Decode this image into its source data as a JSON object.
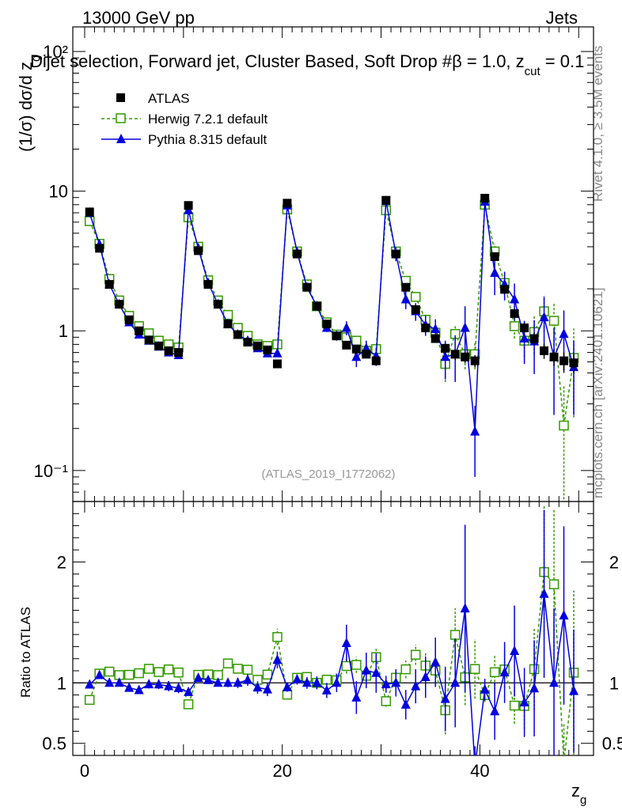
{
  "header": {
    "energy_label": "13000 GeV pp",
    "process_label": "Jets",
    "subtitle": "Dijet selection, Forward jet, Cluster Based, Soft Drop #β = 1.0, z",
    "subtitle_sub": "cut",
    "subtitle_tail": " = 0.1"
  },
  "side": {
    "rivet": "Rivet 4.1.0, ≥ 3.5M events",
    "mcplots": "mcplots.cern.ch [arXiv:2401.10621]"
  },
  "watermark": "(ATLAS_2019_I1772062)",
  "axes": {
    "main_ylabel": "(1/σ) dσ/d z",
    "main_ylabel_sub": "g",
    "ratio_ylabel": "Ratio to ATLAS",
    "xlabel": "z",
    "xlabel_sub": "g"
  },
  "legend": {
    "atlas": "ATLAS",
    "herwig": "Herwig 7.2.1 default",
    "pythia": "Pythia 8.315 default"
  },
  "tick_labels": {
    "main": [
      "10⁻¹",
      "1",
      "10",
      "10²"
    ],
    "ratio": [
      "0.5",
      "1",
      "2"
    ],
    "x": [
      "0",
      "20",
      "40"
    ]
  },
  "colors": {
    "atlas": "#000000",
    "herwig": "#339900",
    "pythia": "#0000dd"
  },
  "chart_data": {
    "type": "scatter",
    "title": "Dijet selection, Forward jet, Cluster Based, Soft Drop β = 1.0, z_cut = 0.1",
    "xlabel": "z_g",
    "ylabel": "(1/σ) dσ/d z_g",
    "yscale": "log",
    "xlim": [
      -1.2,
      51.5
    ],
    "ylim": [
      0.06,
      150
    ],
    "ratio_ylim": [
      0.4,
      2.5
    ],
    "ratio_ylabel": "Ratio to ATLAS",
    "x": [
      0.5,
      1.5,
      2.5,
      3.5,
      4.5,
      5.5,
      6.5,
      7.5,
      8.5,
      9.5,
      10.5,
      11.5,
      12.5,
      13.5,
      14.5,
      15.5,
      16.5,
      17.5,
      18.5,
      19.5,
      20.5,
      21.5,
      22.5,
      23.5,
      24.5,
      25.5,
      26.5,
      27.5,
      28.5,
      29.5,
      30.5,
      31.5,
      32.5,
      33.5,
      34.5,
      35.5,
      36.5,
      37.5,
      38.5,
      39.5,
      40.5,
      41.5,
      42.5,
      43.5,
      44.5,
      45.5,
      46.5,
      47.5,
      48.5,
      49.5
    ],
    "series": [
      {
        "name": "ATLAS",
        "values": [
          7.1,
          3.9,
          2.15,
          1.55,
          1.2,
          1.0,
          0.86,
          0.78,
          0.72,
          0.7,
          7.9,
          3.75,
          2.15,
          1.55,
          1.12,
          0.94,
          0.83,
          0.78,
          0.73,
          0.58,
          8.2,
          3.55,
          2.05,
          1.5,
          1.12,
          0.92,
          0.79,
          0.74,
          0.68,
          0.61,
          8.6,
          3.55,
          2.05,
          1.42,
          1.05,
          0.88,
          0.75,
          0.68,
          0.65,
          0.61,
          8.9,
          3.4,
          1.98,
          1.33,
          1.05,
          0.88,
          0.72,
          0.65,
          0.61,
          0.59
        ],
        "errors": [
          0.2,
          0.1,
          0.05,
          0.04,
          0.03,
          0.03,
          0.03,
          0.03,
          0.03,
          0.03,
          0.25,
          0.1,
          0.05,
          0.04,
          0.03,
          0.03,
          0.03,
          0.03,
          0.03,
          0.03,
          0.25,
          0.1,
          0.06,
          0.05,
          0.04,
          0.04,
          0.04,
          0.04,
          0.04,
          0.04,
          0.3,
          0.12,
          0.08,
          0.07,
          0.06,
          0.06,
          0.06,
          0.06,
          0.06,
          0.06,
          0.3,
          0.15,
          0.1,
          0.1,
          0.09,
          0.09,
          0.09,
          0.09,
          0.09,
          0.09
        ]
      },
      {
        "name": "Herwig 7.2.1 default",
        "values": [
          6.1,
          4.2,
          2.35,
          1.65,
          1.28,
          1.08,
          0.96,
          0.85,
          0.8,
          0.76,
          6.5,
          4.0,
          2.3,
          1.65,
          1.3,
          1.05,
          0.92,
          0.8,
          0.78,
          0.8,
          7.4,
          3.7,
          2.15,
          1.5,
          1.15,
          0.94,
          0.9,
          0.85,
          0.72,
          0.74,
          7.3,
          3.7,
          2.28,
          1.75,
          1.2,
          0.97,
          0.58,
          0.95,
          0.68,
          0.68,
          8.0,
          3.7,
          2.2,
          1.08,
          0.85,
          0.98,
          1.38,
          1.18,
          0.21,
          0.64
        ],
        "errors": [
          0.1,
          0.06,
          0.04,
          0.03,
          0.03,
          0.03,
          0.03,
          0.03,
          0.03,
          0.03,
          0.15,
          0.08,
          0.05,
          0.04,
          0.03,
          0.03,
          0.03,
          0.03,
          0.03,
          0.04,
          0.2,
          0.1,
          0.06,
          0.05,
          0.05,
          0.05,
          0.05,
          0.05,
          0.05,
          0.05,
          0.4,
          0.2,
          0.15,
          0.12,
          0.12,
          0.12,
          0.15,
          0.15,
          0.15,
          0.15,
          0.5,
          0.5,
          0.3,
          0.2,
          0.2,
          0.3,
          0.4,
          0.4,
          0.2,
          0.4
        ]
      },
      {
        "name": "Pythia 8.315 default",
        "values": [
          7.0,
          4.15,
          2.15,
          1.55,
          1.15,
          0.94,
          0.85,
          0.77,
          0.7,
          0.67,
          7.3,
          3.9,
          2.2,
          1.55,
          1.12,
          0.94,
          0.85,
          0.75,
          0.69,
          0.69,
          7.9,
          3.65,
          2.05,
          1.5,
          1.05,
          0.92,
          1.05,
          0.65,
          0.75,
          0.66,
          8.5,
          3.55,
          1.68,
          1.38,
          1.1,
          1.03,
          0.65,
          0.68,
          1.05,
          0.19,
          8.4,
          2.6,
          2.15,
          1.68,
          0.88,
          0.84,
          1.25,
          0.65,
          0.95,
          0.55
        ],
        "errors": [
          0.15,
          0.08,
          0.05,
          0.04,
          0.03,
          0.03,
          0.03,
          0.03,
          0.03,
          0.03,
          0.15,
          0.1,
          0.05,
          0.04,
          0.04,
          0.04,
          0.04,
          0.04,
          0.04,
          0.04,
          0.3,
          0.15,
          0.1,
          0.08,
          0.07,
          0.07,
          0.12,
          0.1,
          0.1,
          0.1,
          0.6,
          0.4,
          0.25,
          0.2,
          0.18,
          0.18,
          0.2,
          0.25,
          0.45,
          0.1,
          0.8,
          0.8,
          0.5,
          0.5,
          0.3,
          0.35,
          0.5,
          0.4,
          0.45,
          0.3
        ]
      }
    ]
  }
}
